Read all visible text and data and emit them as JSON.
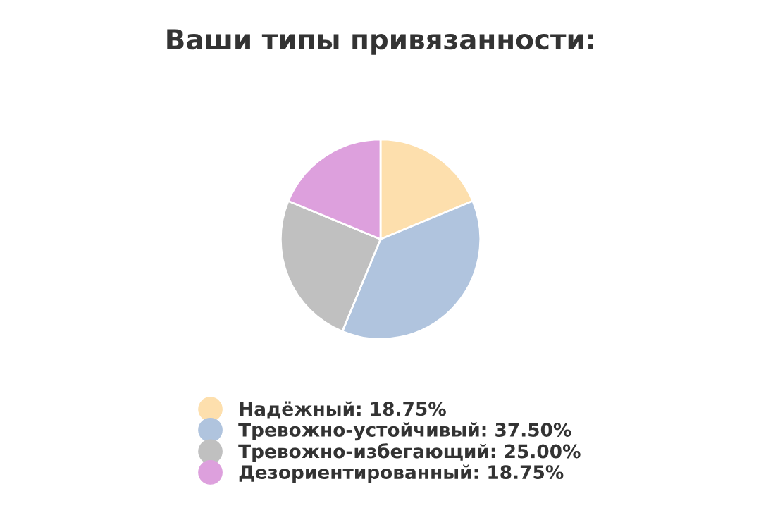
{
  "chart_data": {
    "type": "pie",
    "title": "Ваши типы привязанности:",
    "categories": [
      "Надёжный",
      "Тревожно-устойчивый",
      "Тревожно-избегающий",
      "Дезориентированный"
    ],
    "values": [
      18.75,
      37.5,
      25.0,
      18.75
    ],
    "value_labels": [
      "18.75%",
      "37.50%",
      "25.00%",
      "18.75%"
    ],
    "colors": [
      "#fddfad",
      "#b0c4de",
      "#c0c0c0",
      "#dda0dd"
    ],
    "legend": "bottom"
  }
}
